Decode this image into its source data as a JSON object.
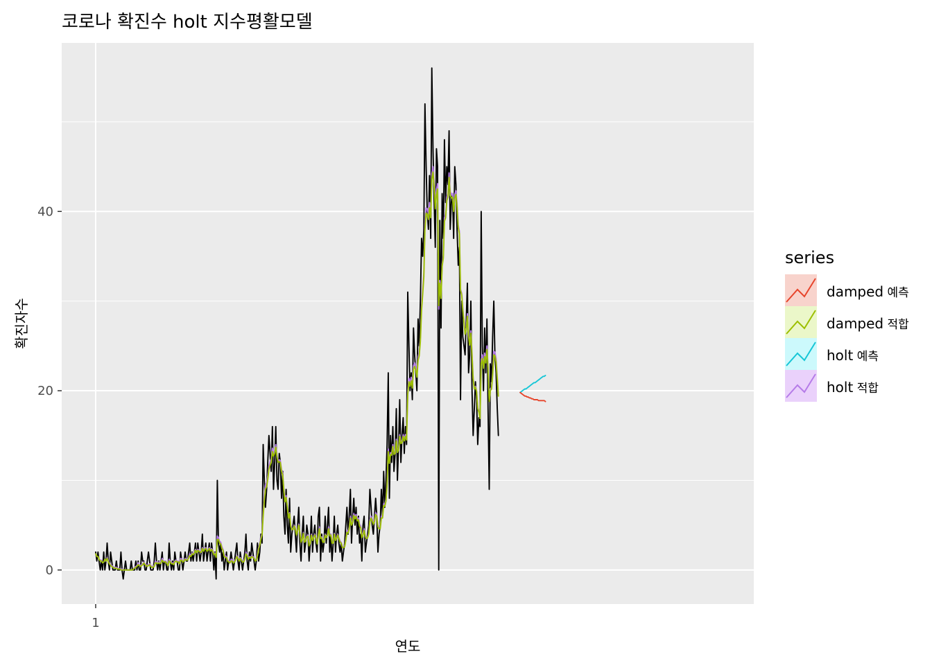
{
  "chart_data": {
    "type": "line",
    "title": "코로나 확진수 holt 지수평활모델",
    "xlabel": "연도",
    "ylabel": "확진자수",
    "x_ticks": [
      1
    ],
    "y_ticks": [
      0,
      20,
      40
    ],
    "ylim": [
      -3.8,
      58.8
    ],
    "xlim": [
      -2.7,
      72.7
    ],
    "legend": {
      "title": "series",
      "position": "right",
      "items": [
        {
          "key": "damped_forecast",
          "label_a": "damped",
          "label_b": "예측",
          "color": "#E7442B"
        },
        {
          "key": "damped_fitted",
          "label_a": "damped",
          "label_b": "적합",
          "color": "#9CBF00"
        },
        {
          "key": "holt_forecast",
          "label_a": "holt",
          "label_b": "예측",
          "color": "#16C6D6"
        },
        {
          "key": "holt_fitted",
          "label_a": "holt",
          "label_b": "적합",
          "color": "#B57BE8"
        }
      ]
    },
    "series": [
      {
        "key": "observed",
        "color": "#000000",
        "x_start": 1,
        "x_step": 0.125,
        "values": [
          2,
          1,
          2,
          1,
          0,
          1,
          0,
          2,
          0,
          1,
          3,
          1,
          0,
          2,
          1,
          0,
          0,
          0,
          1,
          0,
          0,
          0,
          2,
          0,
          -1,
          0,
          1,
          0,
          0,
          0,
          0,
          1,
          0,
          0,
          0,
          1,
          0,
          1,
          0,
          0,
          2,
          1,
          1,
          0,
          0,
          1,
          2,
          1,
          0,
          0,
          0,
          1,
          3,
          1,
          0,
          1,
          0,
          1,
          2,
          0,
          1,
          1,
          0,
          0,
          3,
          1,
          0,
          1,
          0,
          2,
          1,
          1,
          0,
          0,
          2,
          1,
          0,
          1,
          2,
          1,
          1,
          2,
          3,
          1,
          2,
          1,
          2,
          3,
          1,
          3,
          2,
          1,
          2,
          4,
          1,
          2,
          3,
          1,
          2,
          3,
          1,
          3,
          2,
          0,
          2,
          -1,
          10,
          3,
          2,
          3,
          1,
          2,
          0,
          1,
          2,
          0,
          1,
          1,
          2,
          1,
          0,
          1,
          2,
          3,
          1,
          0,
          2,
          1,
          0,
          1,
          2,
          4,
          1,
          0,
          2,
          1,
          3,
          2,
          1,
          0,
          1,
          3,
          1,
          2,
          4,
          3,
          14,
          10,
          7,
          9,
          12,
          15,
          13,
          11,
          16,
          9,
          12,
          16,
          10,
          9,
          13,
          12,
          8,
          11,
          6,
          4,
          9,
          5,
          3,
          8,
          2,
          4,
          5,
          6,
          4,
          2,
          5,
          7,
          3,
          1,
          4,
          6,
          2,
          3,
          5,
          4,
          1,
          3,
          6,
          2,
          4,
          5,
          3,
          2,
          6,
          7,
          1,
          4,
          2,
          3,
          6,
          3,
          5,
          7,
          2,
          4,
          1,
          3,
          6,
          2,
          4,
          5,
          3,
          2,
          3,
          1,
          2,
          3,
          5,
          7,
          4,
          6,
          9,
          3,
          6,
          8,
          5,
          7,
          4,
          6,
          3,
          4,
          1,
          5,
          6,
          2,
          3,
          4,
          5,
          9,
          7,
          5,
          4,
          6,
          8,
          6,
          2,
          4,
          5,
          9,
          6,
          11,
          7,
          10,
          14,
          22,
          8,
          15,
          12,
          16,
          11,
          13,
          18,
          10,
          14,
          19,
          12,
          15,
          17,
          13,
          16,
          14,
          31,
          25,
          20,
          22,
          19,
          27,
          24,
          22,
          20,
          28,
          25,
          30,
          37,
          35,
          38,
          52,
          45,
          40,
          38,
          44,
          37,
          56,
          47,
          41,
          36,
          47,
          45,
          0,
          39,
          27,
          42,
          37,
          48,
          41,
          45,
          43,
          49,
          38,
          41,
          42,
          37,
          45,
          43,
          38,
          34,
          36,
          19,
          30,
          26,
          25,
          24,
          28,
          32,
          22,
          24,
          30,
          20,
          15,
          18,
          21,
          19,
          14,
          17,
          16,
          40,
          25,
          20,
          27,
          22,
          28,
          18,
          9,
          23,
          21,
          26,
          30,
          24,
          22,
          18,
          15
        ]
      },
      {
        "key": "holt_fitted",
        "color": "#B57BE8",
        "x_start": 1,
        "x_step": 0.125,
        "values": [
          1.8,
          1.5,
          1.5,
          1.2,
          1.1,
          1.1,
          0.8,
          0.9,
          1.2,
          1.0,
          1.4,
          1.0,
          0.8,
          0.6,
          0.5,
          0.4,
          0.3,
          0.3,
          0.3,
          0.2,
          0.2,
          0.1,
          0.1,
          0.1,
          0.0,
          0.0,
          0.0,
          0.0,
          0.0,
          0.0,
          0.0,
          0.0,
          0.0,
          0.1,
          0.3,
          0.4,
          0.5,
          0.8,
          0.6,
          0.5,
          0.6,
          0.7,
          0.9,
          0.7,
          0.6,
          0.5,
          0.6,
          0.7,
          0.5,
          0.4,
          0.4,
          0.5,
          1.0,
          0.9,
          0.8,
          0.9,
          0.8,
          0.9,
          1.3,
          1.0,
          1.0,
          1.0,
          0.8,
          0.6,
          1.2,
          1.0,
          0.8,
          0.8,
          0.7,
          1.0,
          1.1,
          1.0,
          1.0,
          0.8,
          1.3,
          1.2,
          1.0,
          1.1,
          1.3,
          1.2,
          1.2,
          1.4,
          1.8,
          1.6,
          1.9,
          1.8,
          2.0,
          2.3,
          2.0,
          2.3,
          2.2,
          2.1,
          2.1,
          2.5,
          2.2,
          2.4,
          2.5,
          2.2,
          2.3,
          2.5,
          2.2,
          2.4,
          2.2,
          1.8,
          1.9,
          1.5,
          3.8,
          3.6,
          3.2,
          3.1,
          2.6,
          2.3,
          1.7,
          1.6,
          1.5,
          1.1,
          1.0,
          0.9,
          1.2,
          1.1,
          0.9,
          1.0,
          1.2,
          1.6,
          1.4,
          1.1,
          1.4,
          1.2,
          1.0,
          1.0,
          1.3,
          2.0,
          1.7,
          1.3,
          1.5,
          1.4,
          1.6,
          1.5,
          1.4,
          1.1,
          1.2,
          1.8,
          2.5,
          3.0,
          3.6,
          4.1,
          6.5,
          8.3,
          9.5,
          9.7,
          10.5,
          11.6,
          12.1,
          12.4,
          13.6,
          13.0,
          13.3,
          14.0,
          12.8,
          12.1,
          12.3,
          12.2,
          11.2,
          10.8,
          9.0,
          7.7,
          8.3,
          7.2,
          5.9,
          6.4,
          5.0,
          4.6,
          4.6,
          5.0,
          4.7,
          4.0,
          4.5,
          5.1,
          4.2,
          3.2,
          3.5,
          4.2,
          3.2,
          3.3,
          3.8,
          3.9,
          2.8,
          3.1,
          4.0,
          3.4,
          3.7,
          4.0,
          3.6,
          3.0,
          3.9,
          4.8,
          3.6,
          3.7,
          3.2,
          3.2,
          4.0,
          3.7,
          4.0,
          4.8,
          3.9,
          4.0,
          3.1,
          3.1,
          4.1,
          3.4,
          3.6,
          4.0,
          3.6,
          3.2,
          3.1,
          2.6,
          2.6,
          2.7,
          3.4,
          4.4,
          4.3,
          4.8,
          6.0,
          5.2,
          5.5,
          6.3,
          5.9,
          6.2,
          5.7,
          5.8,
          5.1,
          4.9,
          3.8,
          4.1,
          4.6,
          3.8,
          3.6,
          3.7,
          4.1,
          5.6,
          6.0,
          5.7,
          5.3,
          5.6,
          6.4,
          6.2,
          5.0,
          4.8,
          4.8,
          6.0,
          6.0,
          7.4,
          7.3,
          7.9,
          9.7,
          13.5,
          12.2,
          13.1,
          13.0,
          14.0,
          13.1,
          13.2,
          14.6,
          13.3,
          13.6,
          15.1,
          14.3,
          14.4,
          15.1,
          14.6,
          15.1,
          14.7,
          20.0,
          21.4,
          20.9,
          21.5,
          20.7,
          22.8,
          23.1,
          22.7,
          21.9,
          23.8,
          24.3,
          25.9,
          29.5,
          31.2,
          33.2,
          38.6,
          40.4,
          40.3,
          39.7,
          41.0,
          39.9,
          44.2,
          45.0,
          43.4,
          40.9,
          42.5,
          43.1,
          29.1,
          32.3,
          30.4,
          34.1,
          35.1,
          39.3,
          39.7,
          41.6,
          42.0,
          44.3,
          42.2,
          41.9,
          42.0,
          40.3,
          41.9,
          42.3,
          40.9,
          38.5,
          37.8,
          31.3,
          30.9,
          29.2,
          27.8,
          26.5,
          27.0,
          28.6,
          26.2,
          25.3,
          26.7,
          24.2,
          21.4,
          20.3,
          20.5,
          20.0,
          18.1,
          17.7,
          17.0,
          23.5,
          24.0,
          22.8,
          24.2,
          23.4,
          25.0,
          22.8,
          18.9,
          20.2,
          20.4,
          22.0,
          24.4,
          24.3,
          23.6,
          21.6,
          19.6
        ]
      },
      {
        "key": "damped_fitted",
        "color": "#9CBF00",
        "x_start": 1,
        "x_step": 0.125,
        "values": [
          1.8,
          1.5,
          1.5,
          1.2,
          1.0,
          1.0,
          0.8,
          0.9,
          1.2,
          1.0,
          1.3,
          0.9,
          0.7,
          0.5,
          0.4,
          0.3,
          0.2,
          0.2,
          0.2,
          0.1,
          0.1,
          0.1,
          0.0,
          0.0,
          0.0,
          0.0,
          0.0,
          0.0,
          0.0,
          0.0,
          0.0,
          0.0,
          0.0,
          0.1,
          0.2,
          0.3,
          0.4,
          0.6,
          0.5,
          0.4,
          0.5,
          0.6,
          0.8,
          0.6,
          0.5,
          0.4,
          0.5,
          0.6,
          0.4,
          0.3,
          0.3,
          0.4,
          0.8,
          0.8,
          0.7,
          0.8,
          0.7,
          0.8,
          1.1,
          0.9,
          0.9,
          0.9,
          0.7,
          0.5,
          1.0,
          0.9,
          0.7,
          0.7,
          0.6,
          0.9,
          1.0,
          0.9,
          0.9,
          0.7,
          1.1,
          1.1,
          0.9,
          1.0,
          1.2,
          1.1,
          1.1,
          1.3,
          1.6,
          1.5,
          1.8,
          1.7,
          1.9,
          2.2,
          1.9,
          2.2,
          2.1,
          2.0,
          2.0,
          2.4,
          2.1,
          2.3,
          2.4,
          2.1,
          2.2,
          2.4,
          2.1,
          2.3,
          2.1,
          1.7,
          1.8,
          1.4,
          3.4,
          3.4,
          3.0,
          2.9,
          2.4,
          2.2,
          1.5,
          1.4,
          1.4,
          1.0,
          0.9,
          0.8,
          1.0,
          1.0,
          0.8,
          0.9,
          1.1,
          1.5,
          1.3,
          1.0,
          1.3,
          1.1,
          0.9,
          0.9,
          1.2,
          1.8,
          1.6,
          1.2,
          1.4,
          1.3,
          1.5,
          1.4,
          1.3,
          1.0,
          1.1,
          1.6,
          2.3,
          2.8,
          3.4,
          3.9,
          6.0,
          7.8,
          9.0,
          9.3,
          10.1,
          11.2,
          11.7,
          12.0,
          13.2,
          12.7,
          13.0,
          13.7,
          12.6,
          12.0,
          12.1,
          12.0,
          11.0,
          10.6,
          8.9,
          7.6,
          8.1,
          7.1,
          5.8,
          6.3,
          4.9,
          4.5,
          4.5,
          4.9,
          4.6,
          3.9,
          4.4,
          5.0,
          4.1,
          3.1,
          3.4,
          4.1,
          3.1,
          3.2,
          3.7,
          3.8,
          2.7,
          3.0,
          3.9,
          3.3,
          3.6,
          3.9,
          3.5,
          2.9,
          3.8,
          4.6,
          3.5,
          3.6,
          3.1,
          3.1,
          3.9,
          3.6,
          3.9,
          4.6,
          3.8,
          3.9,
          3.0,
          3.0,
          4.0,
          3.3,
          3.5,
          3.9,
          3.5,
          3.1,
          3.0,
          2.5,
          2.5,
          2.6,
          3.3,
          4.2,
          4.1,
          4.6,
          5.8,
          5.0,
          5.3,
          6.1,
          5.7,
          6.0,
          5.5,
          5.6,
          4.9,
          4.7,
          3.6,
          3.9,
          4.4,
          3.7,
          3.5,
          3.6,
          4.0,
          5.4,
          5.8,
          5.5,
          5.1,
          5.4,
          6.2,
          6.0,
          4.8,
          4.6,
          4.6,
          5.8,
          5.8,
          7.2,
          7.1,
          7.7,
          9.5,
          13.2,
          11.9,
          12.9,
          12.8,
          13.8,
          12.9,
          13.0,
          14.4,
          13.1,
          13.4,
          14.9,
          14.1,
          14.2,
          14.9,
          14.4,
          14.9,
          14.5,
          19.6,
          21.0,
          20.5,
          21.1,
          20.3,
          22.4,
          22.7,
          22.3,
          21.5,
          23.4,
          23.9,
          25.5,
          29.0,
          30.7,
          32.7,
          38.0,
          39.8,
          39.7,
          39.1,
          40.4,
          39.3,
          43.6,
          44.4,
          42.8,
          40.3,
          41.9,
          42.5,
          29.5,
          32.0,
          30.3,
          33.9,
          34.8,
          38.9,
          39.3,
          41.2,
          41.6,
          43.8,
          41.8,
          41.5,
          41.6,
          40.0,
          41.5,
          41.9,
          40.5,
          38.2,
          37.5,
          31.2,
          30.7,
          29.0,
          27.6,
          26.3,
          26.8,
          28.3,
          26.0,
          25.1,
          26.4,
          24.0,
          21.3,
          20.2,
          20.4,
          19.9,
          18.0,
          17.6,
          16.9,
          23.0,
          23.6,
          22.5,
          23.8,
          23.1,
          24.6,
          22.5,
          18.8,
          20.0,
          20.2,
          21.7,
          24.0,
          23.9,
          23.2,
          21.3,
          19.4
        ]
      },
      {
        "key": "holt_forecast",
        "color": "#16C6D6",
        "x_start": 47.25,
        "x_step": 0.125,
        "values": [
          19.8,
          19.9,
          20.0,
          20.1,
          20.2,
          20.2,
          20.3,
          20.4,
          20.5,
          20.6,
          20.7,
          20.8,
          20.9,
          20.9,
          21.0,
          21.1,
          21.2,
          21.3,
          21.4,
          21.5,
          21.6,
          21.6,
          21.7
        ]
      },
      {
        "key": "damped_forecast",
        "color": "#E7442B",
        "x_start": 47.25,
        "x_step": 0.125,
        "values": [
          19.8,
          19.7,
          19.6,
          19.5,
          19.4,
          19.4,
          19.3,
          19.3,
          19.2,
          19.2,
          19.1,
          19.1,
          19.0,
          19.0,
          19.0,
          19.0,
          18.9,
          18.9,
          18.9,
          18.9,
          18.9,
          18.9,
          18.8
        ]
      }
    ]
  }
}
